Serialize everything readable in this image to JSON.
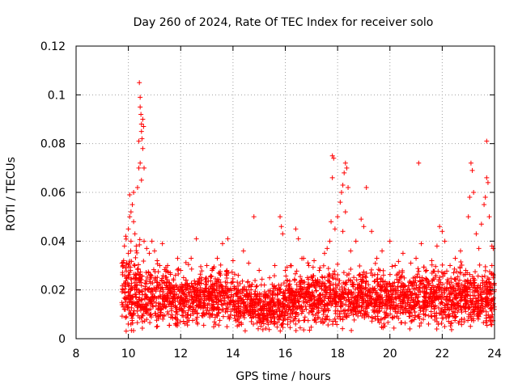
{
  "chart_data": {
    "type": "scatter",
    "title": "Day 260 of 2024, Rate Of TEC Index for receiver solo",
    "xlabel": "GPS time / hours",
    "ylabel": "ROTI / TECUs",
    "xlim": [
      8,
      24
    ],
    "ylim": [
      0,
      0.12
    ],
    "grid": true,
    "marker": "+",
    "marker_color": "#ff0000",
    "x_ticks": [
      {
        "value": 8,
        "label": "8"
      },
      {
        "value": 10,
        "label": "10"
      },
      {
        "value": 12,
        "label": "12"
      },
      {
        "value": 14,
        "label": "14"
      },
      {
        "value": 16,
        "label": "16"
      },
      {
        "value": 18,
        "label": "18"
      },
      {
        "value": 20,
        "label": "20"
      },
      {
        "value": 22,
        "label": "22"
      },
      {
        "value": 24,
        "label": "24"
      }
    ],
    "y_ticks": [
      {
        "value": 0,
        "label": "0"
      },
      {
        "value": 0.02,
        "label": "0.02"
      },
      {
        "value": 0.04,
        "label": "0.04"
      },
      {
        "value": 0.06,
        "label": "0.06"
      },
      {
        "value": 0.08,
        "label": "0.08"
      },
      {
        "value": 0.1,
        "label": "0.1"
      },
      {
        "value": 0.12,
        "label": "0.12"
      }
    ],
    "series": [
      {
        "name": "ROTI",
        "points": [
          [
            9.8,
            0.013
          ],
          [
            9.8,
            0.02
          ],
          [
            9.8,
            0.03
          ],
          [
            9.85,
            0.038
          ],
          [
            9.9,
            0.042
          ],
          [
            9.9,
            0.017
          ],
          [
            9.95,
            0.025
          ],
          [
            10.0,
            0.035
          ],
          [
            10.0,
            0.045
          ],
          [
            10.05,
            0.05
          ],
          [
            10.05,
            0.059
          ],
          [
            10.1,
            0.052
          ],
          [
            10.1,
            0.04
          ],
          [
            10.15,
            0.055
          ],
          [
            10.2,
            0.06
          ],
          [
            10.2,
            0.048
          ],
          [
            10.25,
            0.043
          ],
          [
            10.25,
            0.03
          ],
          [
            10.3,
            0.038
          ],
          [
            10.3,
            0.02
          ],
          [
            10.35,
            0.062
          ],
          [
            10.4,
            0.07
          ],
          [
            10.42,
            0.105
          ],
          [
            10.45,
            0.099
          ],
          [
            10.45,
            0.095
          ],
          [
            10.48,
            0.092
          ],
          [
            10.5,
            0.088
          ],
          [
            10.5,
            0.085
          ],
          [
            10.52,
            0.082
          ],
          [
            10.55,
            0.078
          ],
          [
            10.55,
            0.09
          ],
          [
            10.58,
            0.087
          ],
          [
            10.6,
            0.07
          ],
          [
            10.4,
            0.081
          ],
          [
            10.45,
            0.072
          ],
          [
            10.5,
            0.065
          ],
          [
            10.6,
            0.04
          ],
          [
            10.7,
            0.037
          ],
          [
            10.8,
            0.035
          ],
          [
            10.9,
            0.04
          ],
          [
            11.0,
            0.036
          ],
          [
            11.1,
            0.032
          ],
          [
            11.2,
            0.03
          ],
          [
            11.3,
            0.039
          ],
          [
            11.5,
            0.03
          ],
          [
            11.6,
            0.027
          ],
          [
            11.8,
            0.026
          ],
          [
            12.0,
            0.028
          ],
          [
            12.2,
            0.024
          ],
          [
            12.4,
            0.033
          ],
          [
            12.6,
            0.041
          ],
          [
            12.8,
            0.025
          ],
          [
            13.0,
            0.03
          ],
          [
            13.2,
            0.028
          ],
          [
            13.4,
            0.033
          ],
          [
            13.6,
            0.039
          ],
          [
            13.8,
            0.041
          ],
          [
            14.0,
            0.032
          ],
          [
            14.2,
            0.026
          ],
          [
            14.4,
            0.036
          ],
          [
            14.6,
            0.031
          ],
          [
            14.8,
            0.05
          ],
          [
            15.0,
            0.028
          ],
          [
            15.2,
            0.022
          ],
          [
            15.4,
            0.025
          ],
          [
            15.6,
            0.03
          ],
          [
            15.8,
            0.05
          ],
          [
            15.85,
            0.046
          ],
          [
            15.9,
            0.043
          ],
          [
            16.0,
            0.028
          ],
          [
            16.2,
            0.03
          ],
          [
            16.4,
            0.045
          ],
          [
            16.5,
            0.041
          ],
          [
            16.7,
            0.033
          ],
          [
            16.9,
            0.03
          ],
          [
            17.1,
            0.032
          ],
          [
            17.3,
            0.028
          ],
          [
            17.5,
            0.035
          ],
          [
            17.6,
            0.037
          ],
          [
            17.7,
            0.04
          ],
          [
            17.75,
            0.048
          ],
          [
            17.8,
            0.075
          ],
          [
            17.85,
            0.074
          ],
          [
            17.8,
            0.066
          ],
          [
            17.9,
            0.045
          ],
          [
            18.0,
            0.05
          ],
          [
            18.1,
            0.056
          ],
          [
            18.15,
            0.06
          ],
          [
            18.2,
            0.063
          ],
          [
            18.25,
            0.068
          ],
          [
            18.3,
            0.072
          ],
          [
            18.35,
            0.07
          ],
          [
            18.4,
            0.062
          ],
          [
            18.3,
            0.052
          ],
          [
            18.2,
            0.044
          ],
          [
            18.5,
            0.036
          ],
          [
            18.7,
            0.04
          ],
          [
            18.9,
            0.049
          ],
          [
            19.0,
            0.046
          ],
          [
            19.1,
            0.062
          ],
          [
            19.3,
            0.044
          ],
          [
            19.5,
            0.033
          ],
          [
            19.7,
            0.036
          ],
          [
            20.0,
            0.04
          ],
          [
            20.2,
            0.03
          ],
          [
            20.5,
            0.035
          ],
          [
            20.8,
            0.031
          ],
          [
            21.0,
            0.033
          ],
          [
            21.1,
            0.072
          ],
          [
            21.2,
            0.039
          ],
          [
            21.4,
            0.028
          ],
          [
            21.6,
            0.032
          ],
          [
            21.8,
            0.038
          ],
          [
            21.9,
            0.046
          ],
          [
            22.0,
            0.044
          ],
          [
            22.1,
            0.04
          ],
          [
            22.3,
            0.03
          ],
          [
            22.5,
            0.033
          ],
          [
            22.7,
            0.036
          ],
          [
            22.9,
            0.028
          ],
          [
            23.0,
            0.05
          ],
          [
            23.05,
            0.058
          ],
          [
            23.1,
            0.072
          ],
          [
            23.15,
            0.069
          ],
          [
            23.2,
            0.06
          ],
          [
            23.3,
            0.043
          ],
          [
            23.4,
            0.037
          ],
          [
            23.5,
            0.047
          ],
          [
            23.6,
            0.055
          ],
          [
            23.65,
            0.058
          ],
          [
            23.7,
            0.066
          ],
          [
            23.75,
            0.064
          ],
          [
            23.7,
            0.081
          ],
          [
            23.8,
            0.05
          ],
          [
            23.9,
            0.038
          ],
          [
            23.95,
            0.037
          ],
          [
            23.9,
            0.03
          ],
          [
            23.95,
            0.025
          ],
          [
            24.0,
            0.02
          ],
          [
            23.85,
            0.007
          ]
        ]
      }
    ]
  }
}
